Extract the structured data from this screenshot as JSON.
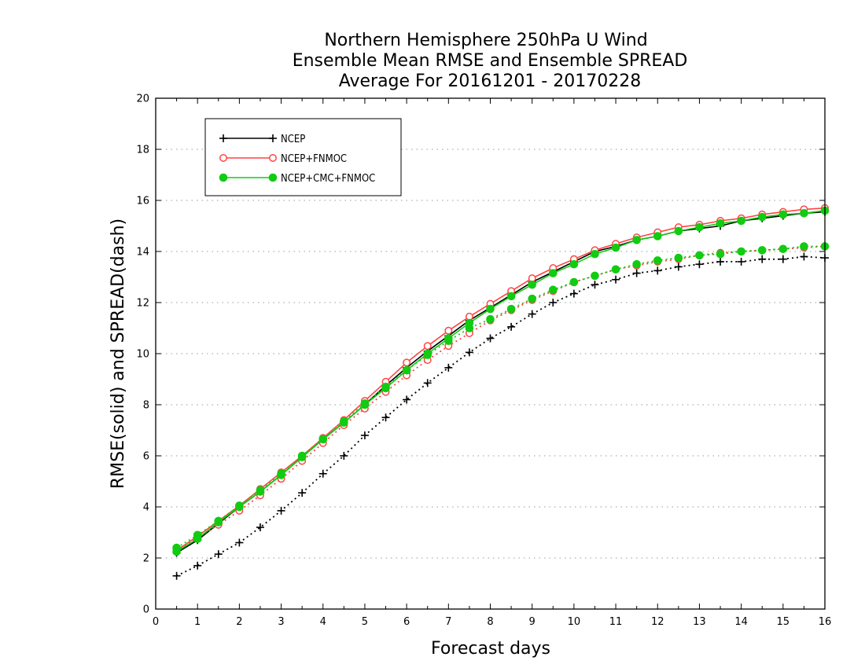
{
  "chart_data": {
    "type": "line",
    "title": [
      "Northern Hemisphere 250hPa U Wind",
      "Ensemble Mean RMSE and Ensemble SPREAD",
      "Average For 20161201 - 20170228"
    ],
    "xlabel": "Forecast days",
    "ylabel": "RMSE(solid) and SPREAD(dash)",
    "xlim": [
      0,
      16
    ],
    "ylim": [
      0,
      20
    ],
    "xticks": [
      0,
      1,
      2,
      3,
      4,
      5,
      6,
      7,
      8,
      9,
      10,
      11,
      12,
      13,
      14,
      15,
      16
    ],
    "yticks": [
      0,
      2,
      4,
      6,
      8,
      10,
      12,
      14,
      16,
      18,
      20
    ],
    "grid": "horizontal-dotted",
    "legend_position": "top-left",
    "x": [
      0.5,
      1,
      1.5,
      2,
      2.5,
      3,
      3.5,
      4,
      4.5,
      5,
      5.5,
      6,
      6.5,
      7,
      7.5,
      8,
      8.5,
      9,
      9.5,
      10,
      10.5,
      11,
      11.5,
      12,
      12.5,
      13,
      13.5,
      14,
      14.5,
      15,
      15.5,
      16
    ],
    "series": [
      {
        "name": "NCEP",
        "color": "#000000",
        "marker": "plus",
        "rmse": [
          2.2,
          2.7,
          3.35,
          4.0,
          4.6,
          5.25,
          5.95,
          6.65,
          7.3,
          8.0,
          8.75,
          9.45,
          10.1,
          10.7,
          11.3,
          11.8,
          12.3,
          12.8,
          13.2,
          13.6,
          14.0,
          14.2,
          14.45,
          14.6,
          14.8,
          14.9,
          15.0,
          15.2,
          15.3,
          15.4,
          15.5,
          15.55
        ],
        "spread": [
          1.3,
          1.7,
          2.15,
          2.6,
          3.2,
          3.85,
          4.55,
          5.3,
          6.0,
          6.8,
          7.5,
          8.2,
          8.85,
          9.45,
          10.05,
          10.6,
          11.05,
          11.55,
          12.0,
          12.35,
          12.7,
          12.9,
          13.15,
          13.25,
          13.4,
          13.5,
          13.6,
          13.6,
          13.7,
          13.7,
          13.8,
          13.75
        ]
      },
      {
        "name": "NCEP+FNMOC",
        "color": "#ff4444",
        "marker": "open-circle",
        "rmse": [
          2.3,
          2.85,
          3.45,
          4.05,
          4.7,
          5.35,
          6.0,
          6.7,
          7.4,
          8.15,
          8.9,
          9.65,
          10.3,
          10.9,
          11.45,
          11.95,
          12.45,
          12.95,
          13.35,
          13.7,
          14.05,
          14.3,
          14.55,
          14.75,
          14.95,
          15.05,
          15.2,
          15.3,
          15.45,
          15.55,
          15.65,
          15.7
        ],
        "spread": [
          2.3,
          2.8,
          3.3,
          3.85,
          4.45,
          5.1,
          5.8,
          6.5,
          7.2,
          7.85,
          8.5,
          9.15,
          9.75,
          10.3,
          10.8,
          11.3,
          11.7,
          12.1,
          12.45,
          12.8,
          13.05,
          13.3,
          13.45,
          13.6,
          13.7,
          13.85,
          13.95,
          14.0,
          14.05,
          14.1,
          14.15,
          14.2
        ]
      },
      {
        "name": "NCEP+CMC+FNMOC",
        "color": "#11cc11",
        "marker": "filled-circle",
        "rmse": [
          2.25,
          2.75,
          3.4,
          4.0,
          4.6,
          5.25,
          5.95,
          6.65,
          7.3,
          8.0,
          8.65,
          9.35,
          10.0,
          10.6,
          11.2,
          11.75,
          12.25,
          12.7,
          13.15,
          13.5,
          13.9,
          14.15,
          14.45,
          14.6,
          14.8,
          14.95,
          15.1,
          15.2,
          15.35,
          15.45,
          15.5,
          15.6
        ],
        "spread": [
          2.4,
          2.9,
          3.45,
          4.05,
          4.65,
          5.3,
          6.0,
          6.65,
          7.35,
          8.05,
          8.7,
          9.35,
          9.95,
          10.5,
          11.0,
          11.35,
          11.75,
          12.15,
          12.5,
          12.8,
          13.05,
          13.3,
          13.5,
          13.65,
          13.75,
          13.85,
          13.9,
          14.0,
          14.05,
          14.1,
          14.2,
          14.2
        ]
      }
    ]
  }
}
